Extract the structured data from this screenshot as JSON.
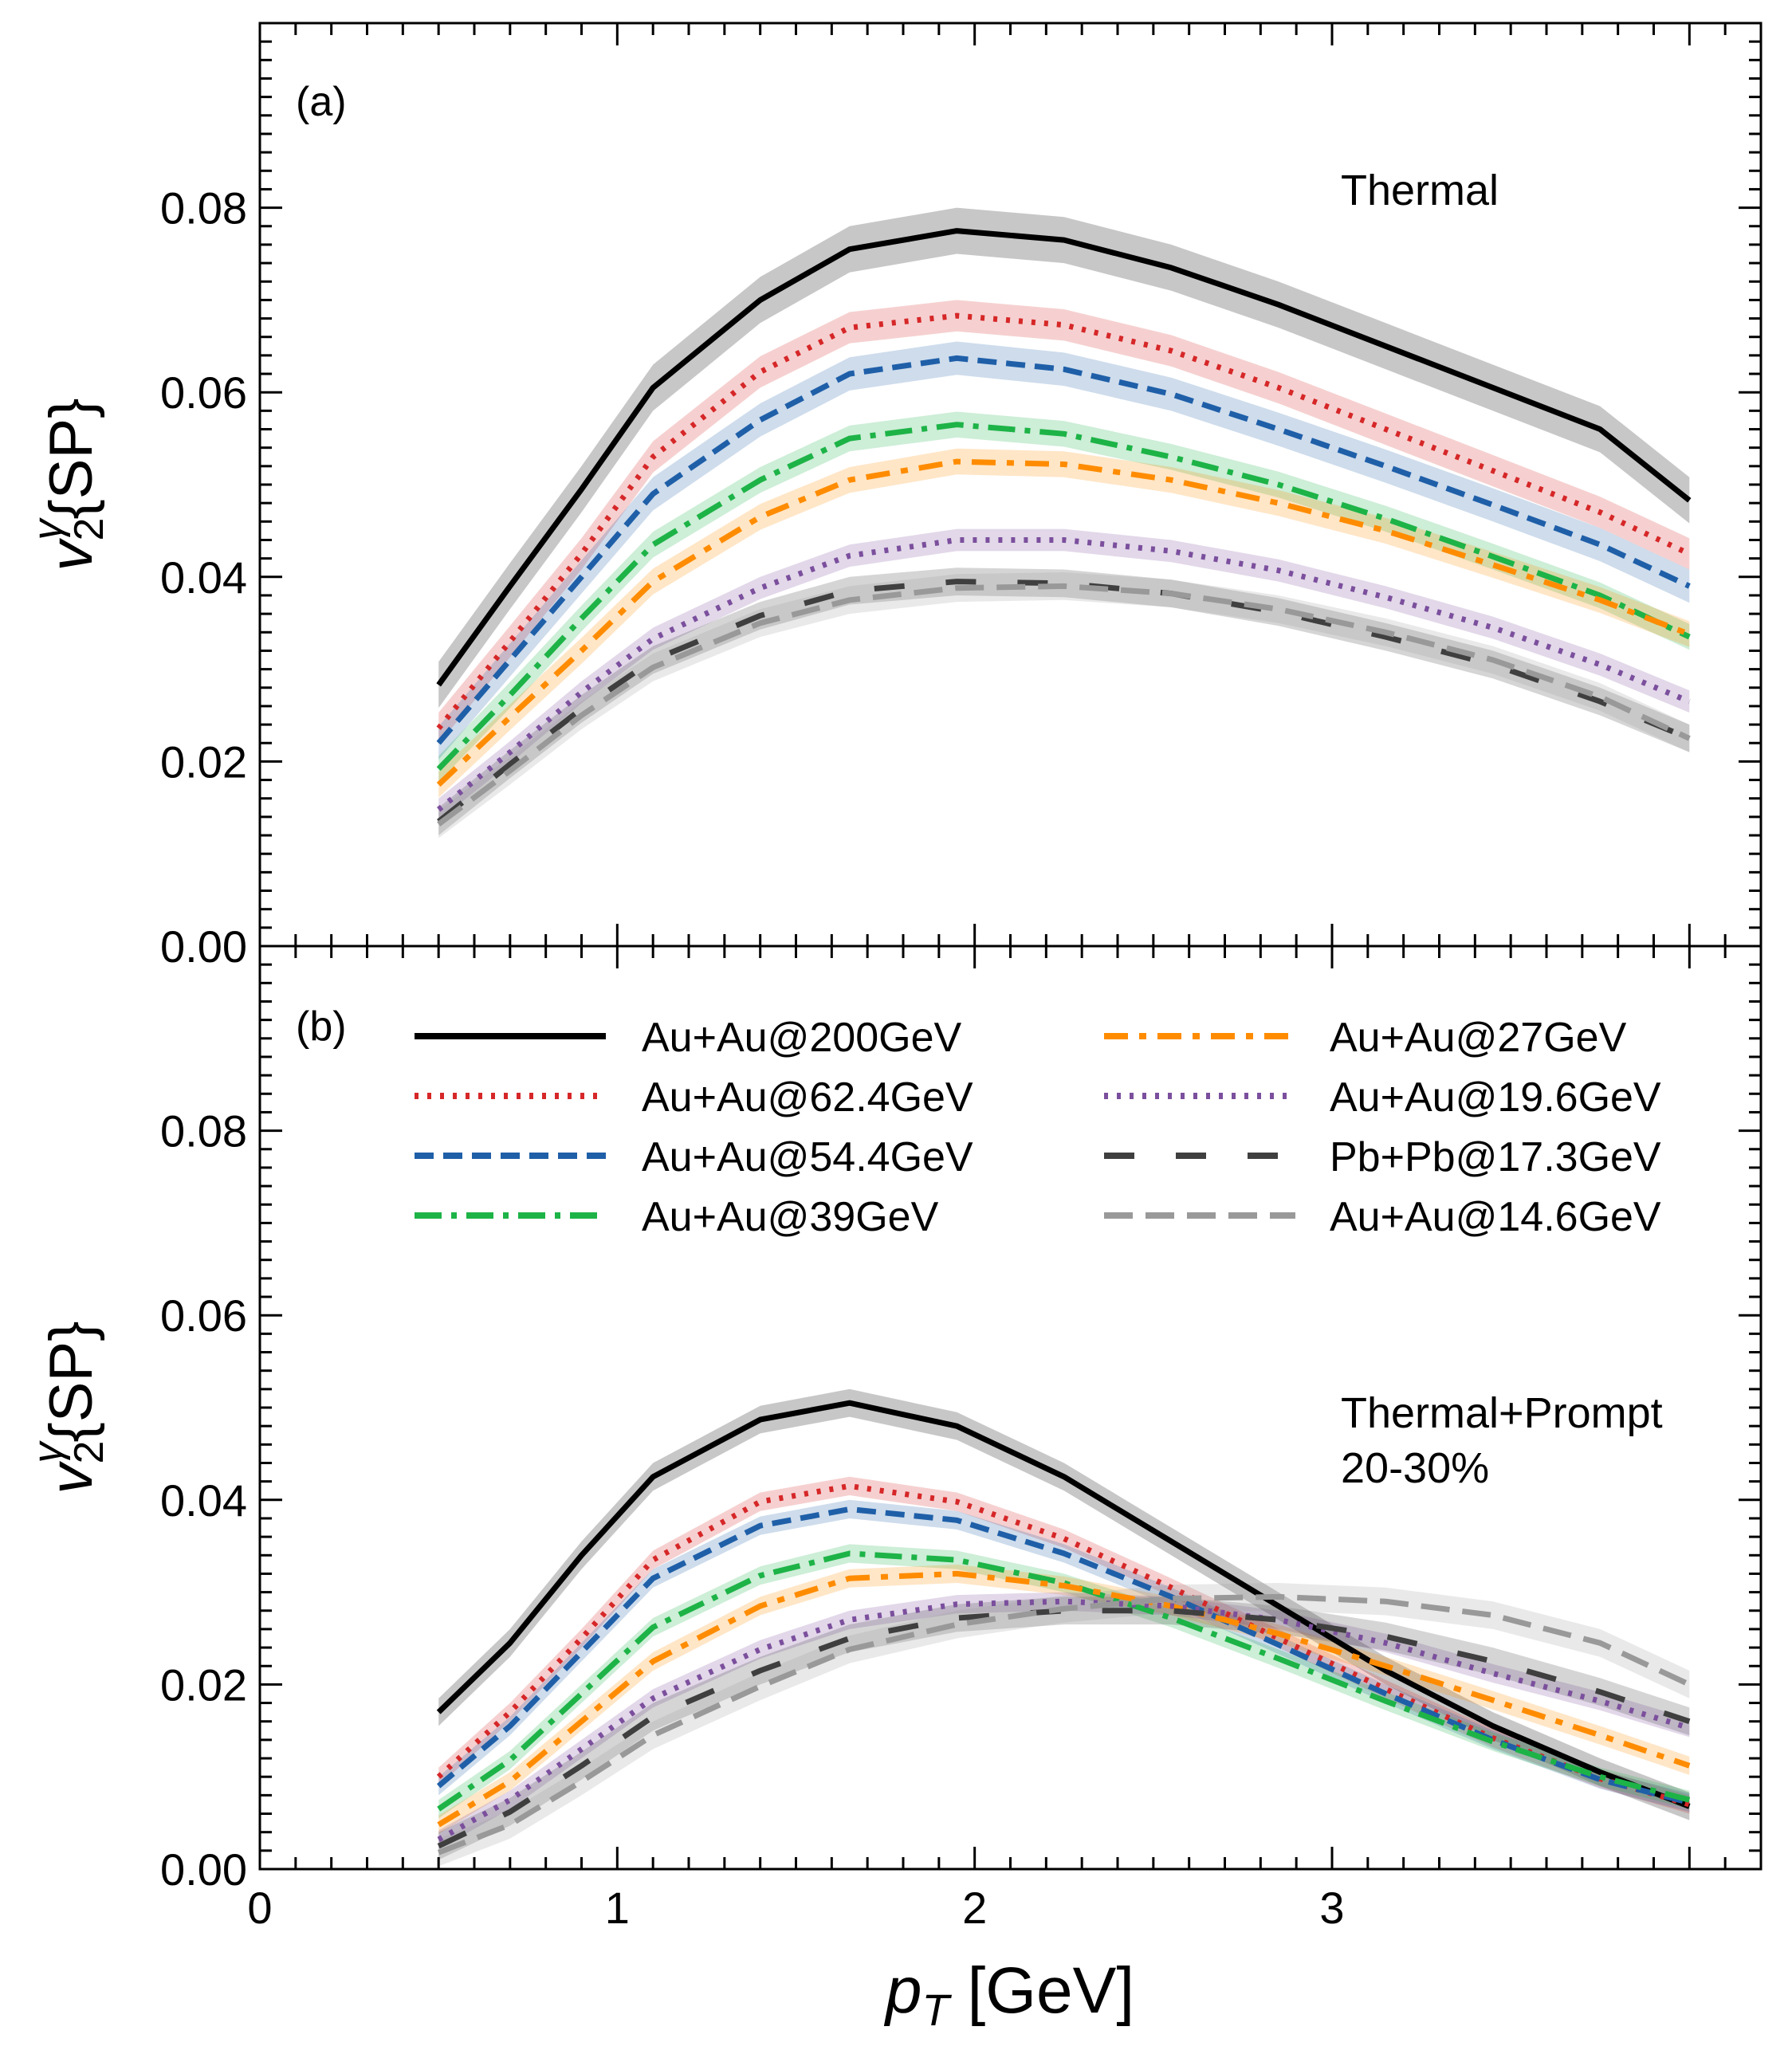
{
  "figure": {
    "x_axis_label_main": "p",
    "x_axis_label_sub": "T",
    "x_axis_label_unit": " [GeV]",
    "y_axis_label_v": "v",
    "y_axis_label_sup": "γ",
    "y_axis_label_sub": "2",
    "y_axis_label_rest": "{SP}"
  },
  "chart_data": [
    {
      "type": "line",
      "panel_label": "(a)",
      "annotation": [
        "Thermal"
      ],
      "xlim": [
        0,
        4.2
      ],
      "ylim": [
        0,
        0.1
      ],
      "x_ticks": [
        0,
        1,
        2,
        3
      ],
      "y_ticks": [
        "0.00",
        "0.02",
        "0.04",
        "0.06",
        "0.08"
      ],
      "x": [
        0.5,
        0.7,
        0.9,
        1.1,
        1.4,
        1.65,
        1.95,
        2.25,
        2.55,
        2.85,
        3.15,
        3.45,
        3.75,
        4.0
      ],
      "series": [
        {
          "name": "Au+Au@200GeV",
          "color": "#000000",
          "dash": "solid",
          "band": 0.0025,
          "values": [
            0.0283,
            0.039,
            0.0495,
            0.0605,
            0.07,
            0.0755,
            0.0775,
            0.0765,
            0.0735,
            0.0695,
            0.065,
            0.0605,
            0.056,
            0.0483
          ]
        },
        {
          "name": "Au+Au@62.4GeV",
          "color": "#d62728",
          "dash": "dotted",
          "band": 0.0017,
          "values": [
            0.0236,
            0.033,
            0.0425,
            0.053,
            0.0622,
            0.067,
            0.0683,
            0.0673,
            0.0645,
            0.0605,
            0.056,
            0.0515,
            0.047,
            0.0425
          ]
        },
        {
          "name": "Au+Au@54.4GeV",
          "color": "#1f5fa8",
          "dash": "dashed",
          "band": 0.0018,
          "values": [
            0.022,
            0.031,
            0.04,
            0.049,
            0.057,
            0.062,
            0.0637,
            0.0625,
            0.0598,
            0.056,
            0.052,
            0.0478,
            0.0435,
            0.039
          ]
        },
        {
          "name": "Au+Au@39GeV",
          "color": "#1db347",
          "dash": "dashdot",
          "band": 0.0014,
          "values": [
            0.0192,
            0.0272,
            0.0355,
            0.0435,
            0.0505,
            0.055,
            0.0565,
            0.0555,
            0.053,
            0.05,
            0.0463,
            0.0422,
            0.038,
            0.0335
          ]
        },
        {
          "name": "Au+Au@27GeV",
          "color": "#ff8c00",
          "dash": "longdashdot",
          "band": 0.0014,
          "values": [
            0.0175,
            0.0248,
            0.032,
            0.0395,
            0.0465,
            0.0505,
            0.0525,
            0.0522,
            0.0505,
            0.048,
            0.045,
            0.0413,
            0.0375,
            0.0338
          ]
        },
        {
          "name": "Au+Au@19.6GeV",
          "color": "#7b4f9d",
          "dash": "dotted",
          "band": 0.0012,
          "values": [
            0.0148,
            0.021,
            0.0275,
            0.0333,
            0.0388,
            0.0423,
            0.044,
            0.044,
            0.0428,
            0.0407,
            0.0378,
            0.0345,
            0.0305,
            0.0265
          ]
        },
        {
          "name": "Pb+Pb@17.3GeV",
          "color": "#3f3f3f",
          "dash": "loosedash",
          "band": 0.0015,
          "values": [
            0.0135,
            0.0197,
            0.0257,
            0.031,
            0.0358,
            0.0385,
            0.0395,
            0.0393,
            0.0382,
            0.0362,
            0.0335,
            0.0305,
            0.0265,
            0.0225
          ]
        },
        {
          "name": "Au+Au@14.6GeV",
          "color": "#999999",
          "dash": "longdash",
          "band": 0.0015,
          "values": [
            0.0132,
            0.019,
            0.025,
            0.0302,
            0.035,
            0.0375,
            0.0388,
            0.039,
            0.0382,
            0.0365,
            0.034,
            0.031,
            0.027,
            0.0225
          ]
        }
      ]
    },
    {
      "type": "line",
      "panel_label": "(b)",
      "annotation": [
        "Thermal+Prompt",
        "20-30%"
      ],
      "xlim": [
        0,
        4.2
      ],
      "ylim": [
        0,
        0.1
      ],
      "x_ticks": [
        "0",
        "1",
        "2",
        "3"
      ],
      "y_ticks": [
        "0.00",
        "0.02",
        "0.04",
        "0.06",
        "0.08"
      ],
      "x": [
        0.5,
        0.7,
        0.9,
        1.1,
        1.4,
        1.65,
        1.95,
        2.25,
        2.55,
        2.85,
        3.15,
        3.45,
        3.75,
        4.0
      ],
      "legend_position": "upper-center, two columns",
      "series": [
        {
          "name": "Au+Au@200GeV",
          "color": "#000000",
          "dash": "solid",
          "band": 0.0015,
          "values": [
            0.017,
            0.0245,
            0.034,
            0.0425,
            0.0487,
            0.0505,
            0.048,
            0.0425,
            0.0355,
            0.0285,
            0.0215,
            0.0155,
            0.0105,
            0.0068
          ]
        },
        {
          "name": "Au+Au@62.4GeV",
          "color": "#d62728",
          "dash": "dotted",
          "band": 0.001,
          "values": [
            0.01,
            0.017,
            0.025,
            0.0335,
            0.0398,
            0.0415,
            0.0398,
            0.0358,
            0.0305,
            0.025,
            0.0195,
            0.0142,
            0.0098,
            0.007
          ]
        },
        {
          "name": "Au+Au@54.4GeV",
          "color": "#1f5fa8",
          "dash": "dashed",
          "band": 0.001,
          "values": [
            0.009,
            0.0155,
            0.0235,
            0.0315,
            0.0372,
            0.039,
            0.0378,
            0.0342,
            0.0295,
            0.0243,
            0.019,
            0.014,
            0.0097,
            0.0072
          ]
        },
        {
          "name": "Au+Au@39GeV",
          "color": "#1db347",
          "dash": "dashdot",
          "band": 0.001,
          "values": [
            0.0065,
            0.0118,
            0.019,
            0.0262,
            0.0318,
            0.0342,
            0.0335,
            0.031,
            0.0272,
            0.0228,
            0.0182,
            0.0138,
            0.01,
            0.0075
          ]
        },
        {
          "name": "Au+Au@27GeV",
          "color": "#ff8c00",
          "dash": "longdashdot",
          "band": 0.001,
          "values": [
            0.0048,
            0.0095,
            0.016,
            0.0225,
            0.0285,
            0.0315,
            0.032,
            0.0307,
            0.0285,
            0.0255,
            0.022,
            0.0183,
            0.0145,
            0.0112
          ]
        },
        {
          "name": "Au+Au@19.6GeV",
          "color": "#7b4f9d",
          "dash": "dotted",
          "band": 0.001,
          "values": [
            0.0032,
            0.0075,
            0.013,
            0.0185,
            0.0238,
            0.027,
            0.0287,
            0.029,
            0.0285,
            0.027,
            0.0245,
            0.0212,
            0.0182,
            0.0153
          ]
        },
        {
          "name": "Pb+Pb@17.3GeV",
          "color": "#3f3f3f",
          "dash": "loosedash",
          "band": 0.0015,
          "values": [
            0.0025,
            0.0062,
            0.0112,
            0.0165,
            0.0215,
            0.025,
            0.0272,
            0.028,
            0.028,
            0.027,
            0.0252,
            0.0225,
            0.0192,
            0.016
          ]
        },
        {
          "name": "Au+Au@14.6GeV",
          "color": "#999999",
          "dash": "longdash",
          "band": 0.0015,
          "values": [
            0.0018,
            0.0048,
            0.0095,
            0.0145,
            0.0198,
            0.0238,
            0.0265,
            0.0282,
            0.0293,
            0.0295,
            0.029,
            0.0275,
            0.0245,
            0.02
          ]
        }
      ]
    }
  ]
}
